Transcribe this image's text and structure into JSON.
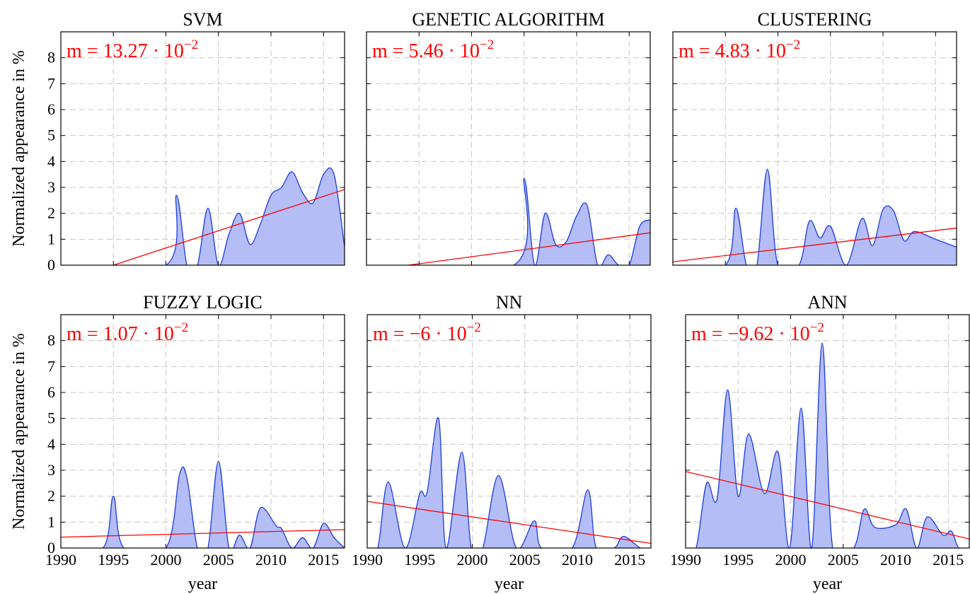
{
  "chart_data": [
    {
      "type": "area",
      "title": "SVM",
      "ylabel": "Normalized appearance in %",
      "x": [
        1990,
        2000,
        2001,
        2002,
        2003,
        2004,
        2005,
        2006,
        2007,
        2008,
        2009,
        2010,
        2011,
        2012,
        2013,
        2014,
        2015,
        2016,
        2017
      ],
      "values": [
        0,
        0,
        2.7,
        0,
        0,
        2.2,
        0,
        1.2,
        2.0,
        0.8,
        1.6,
        2.7,
        3.0,
        3.6,
        2.8,
        2.4,
        3.5,
        3.5,
        0.7
      ],
      "color": "#1a3be0",
      "fill": "#b4bdf6",
      "trend": {
        "x": [
          1995,
          2017
        ],
        "y": [
          0,
          2.92
        ],
        "color": "#ff0000"
      },
      "annotation": {
        "text": "m = 13.27 · 10",
        "exponent": "−2"
      },
      "xlim": [
        1990,
        2017
      ],
      "ylim": [
        0,
        9
      ],
      "xticks": [
        1990,
        1995,
        2000,
        2005,
        2010,
        2015
      ],
      "yticks": [
        0,
        1,
        2,
        3,
        4,
        5,
        6,
        7,
        8
      ],
      "grid": true,
      "show_xticklabels": false,
      "show_yticklabels": true
    },
    {
      "type": "area",
      "title": "GENETIC ALGORITHM",
      "x": [
        1990,
        2004,
        2005,
        2006,
        2007,
        2008,
        2009,
        2010,
        2011,
        2012,
        2013,
        2014,
        2015,
        2016,
        2017
      ],
      "values": [
        0,
        0,
        3.35,
        0,
        2.0,
        0.8,
        0.9,
        1.9,
        2.3,
        0,
        0.4,
        0,
        0,
        1.5,
        1.75
      ],
      "color": "#1a3be0",
      "fill": "#b4bdf6",
      "trend": {
        "x": [
          1994,
          2017
        ],
        "y": [
          0,
          1.25
        ],
        "color": "#ff0000"
      },
      "annotation": {
        "text": "m = 5.46 · 10",
        "exponent": "−2"
      },
      "xlim": [
        1990,
        2017
      ],
      "ylim": [
        0,
        9
      ],
      "xticks": [
        1990,
        1995,
        2000,
        2005,
        2010,
        2015
      ],
      "yticks": [
        0,
        1,
        2,
        3,
        4,
        5,
        6,
        7,
        8
      ],
      "grid": true,
      "show_xticklabels": false,
      "show_yticklabels": false
    },
    {
      "type": "area",
      "title": "CLUSTERING",
      "x": [
        1990,
        1995,
        1996,
        1997,
        1998,
        1999,
        2000,
        2002,
        2003,
        2004,
        2005,
        2006.5,
        2008,
        2009,
        2010,
        2011,
        2012,
        2013,
        2015,
        2017
      ],
      "values": [
        0,
        0,
        2.2,
        0,
        0,
        3.7,
        0,
        0,
        1.7,
        1.05,
        1.5,
        0,
        1.8,
        0.75,
        2.15,
        2.1,
        0.95,
        1.3,
        1.0,
        0.7
      ],
      "color": "#1a3be0",
      "fill": "#b4bdf6",
      "trend": {
        "x": [
          1990,
          2017
        ],
        "y": [
          0.13,
          1.43
        ],
        "color": "#ff0000"
      },
      "annotation": {
        "text": "m = 4.83 · 10",
        "exponent": "−2"
      },
      "xlim": [
        1990,
        2017
      ],
      "ylim": [
        0,
        9
      ],
      "xticks": [
        1990,
        1995,
        2000,
        2005,
        2010,
        2015
      ],
      "yticks": [
        0,
        1,
        2,
        3,
        4,
        5,
        6,
        7,
        8
      ],
      "grid": true,
      "show_xticklabels": false,
      "show_yticklabels": false
    },
    {
      "type": "area",
      "title": "FUZZY LOGIC",
      "ylabel": "Normalized appearance in %",
      "xlabel": "year",
      "x": [
        1990,
        1994,
        1995,
        1996,
        2000,
        2001.3,
        2002,
        2003,
        2004,
        2005,
        2006,
        2007,
        2008,
        2009,
        2010.5,
        2011,
        2012,
        2013,
        2014,
        2015,
        2016,
        2017
      ],
      "values": [
        0,
        0,
        2.0,
        0,
        0,
        2.85,
        2.7,
        0,
        0,
        3.35,
        0,
        0.5,
        0,
        1.55,
        0.85,
        0.75,
        0,
        0.4,
        0,
        0.95,
        0.4,
        0
      ],
      "color": "#1a3be0",
      "fill": "#b4bdf6",
      "trend": {
        "x": [
          1990,
          2017
        ],
        "y": [
          0.42,
          0.71
        ],
        "color": "#ff0000"
      },
      "annotation": {
        "text": "m = 1.07 · 10",
        "exponent": "−2"
      },
      "xlim": [
        1990,
        2017
      ],
      "ylim": [
        0,
        9
      ],
      "xticks": [
        1990,
        1995,
        2000,
        2005,
        2010,
        2015
      ],
      "yticks": [
        0,
        1,
        2,
        3,
        4,
        5,
        6,
        7,
        8
      ],
      "grid": true,
      "show_xticklabels": true,
      "show_yticklabels": true
    },
    {
      "type": "area",
      "title": "NN",
      "xlabel": "year",
      "x": [
        1990,
        1991,
        1992,
        1993.6,
        1995,
        1995.7,
        1996.8,
        1997.5,
        1999,
        1999.9,
        2001,
        2002.5,
        2004.2,
        2005.9,
        2006.6,
        2009.5,
        2011,
        2011.8,
        2013.5,
        2014.4,
        2016,
        2017
      ],
      "values": [
        0,
        0,
        2.55,
        0,
        2.1,
        2.15,
        5.0,
        0,
        3.7,
        0,
        0,
        2.8,
        0,
        1.05,
        0,
        0,
        2.25,
        0,
        0,
        0.45,
        0,
        0
      ],
      "color": "#1a3be0",
      "fill": "#b4bdf6",
      "trend": {
        "x": [
          1990,
          2017
        ],
        "y": [
          1.8,
          0.18
        ],
        "color": "#ff0000"
      },
      "annotation": {
        "text": "m = −6 · 10",
        "exponent": "−2"
      },
      "xlim": [
        1990,
        2017
      ],
      "ylim": [
        0,
        9
      ],
      "xticks": [
        1990,
        1995,
        2000,
        2005,
        2010,
        2015
      ],
      "yticks": [
        0,
        1,
        2,
        3,
        4,
        5,
        6,
        7,
        8
      ],
      "grid": true,
      "show_xticklabels": true,
      "show_yticklabels": false
    },
    {
      "type": "area",
      "title": "ANN",
      "xlabel": "year",
      "x": [
        1990,
        1991,
        1992,
        1993,
        1994,
        1995,
        1996,
        1997.5,
        1998.8,
        1999.9,
        2001,
        2002,
        2003,
        2004,
        2006,
        2007,
        2008,
        2010,
        2011,
        2012,
        2013,
        2014.5,
        2015.3,
        2016,
        2017
      ],
      "values": [
        0,
        0,
        2.5,
        1.9,
        6.1,
        2.0,
        4.4,
        2.1,
        3.7,
        0,
        5.4,
        0,
        7.9,
        0,
        0,
        1.5,
        0.8,
        0.9,
        1.5,
        0,
        1.2,
        0.5,
        0.65,
        0,
        0
      ],
      "color": "#1a3be0",
      "fill": "#b4bdf6",
      "trend": {
        "x": [
          1990,
          2017
        ],
        "y": [
          2.95,
          0.35
        ],
        "color": "#ff0000"
      },
      "annotation": {
        "text": "m = −9.62 · 10",
        "exponent": "−2"
      },
      "xlim": [
        1990,
        2017
      ],
      "ylim": [
        0,
        9
      ],
      "xticks": [
        1990,
        1995,
        2000,
        2005,
        2010,
        2015
      ],
      "yticks": [
        0,
        1,
        2,
        3,
        4,
        5,
        6,
        7,
        8
      ],
      "grid": true,
      "show_xticklabels": true,
      "show_yticklabels": false
    }
  ]
}
